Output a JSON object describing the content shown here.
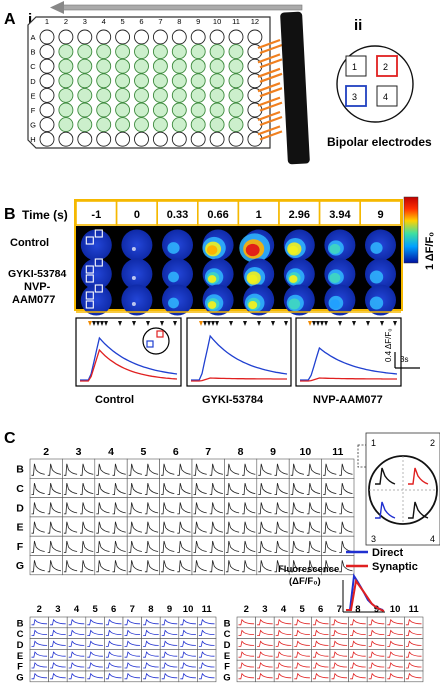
{
  "panel_a": {
    "label": "A",
    "sub_i": "i",
    "sub_ii": "ii",
    "plate_cols": [
      "1",
      "2",
      "3",
      "4",
      "5",
      "6",
      "7",
      "8",
      "9",
      "10",
      "11",
      "12"
    ],
    "plate_rows": [
      "A",
      "B",
      "C",
      "D",
      "E",
      "F",
      "G",
      "H"
    ],
    "electrode_numbers": [
      "1",
      "2",
      "3",
      "4"
    ],
    "electrode_caption": "Bipolar electrodes",
    "colors": {
      "well_fill": "#ccefcc",
      "well_stroke": "#3d8a3d",
      "tab": "#f08020",
      "electrode_red": "#e02020",
      "electrode_blue": "#2040c0"
    }
  },
  "panel_b": {
    "label": "B",
    "time_header": "Time (s)",
    "times": [
      "-1",
      "0",
      "0.33",
      "0.66",
      "1",
      "2.96",
      "3.94",
      "9"
    ],
    "conditions": [
      "Control",
      "GYKI-53784",
      "NVP-AAM077"
    ],
    "colorbar_label": "1 ΔF/F₀",
    "scale_y": "0.4 ΔF/F₀",
    "scale_x": "3s",
    "trace_titles": [
      "Control",
      "GYKI-53784",
      "NVP-AAM077"
    ],
    "colors": {
      "frame": "#f5b800",
      "blue_trace": "#2040d0",
      "red_trace": "#e02020",
      "marker_orange": "#f08a00"
    }
  },
  "panel_c": {
    "label": "C",
    "cols": [
      "2",
      "3",
      "4",
      "5",
      "6",
      "7",
      "8",
      "9",
      "10",
      "11"
    ],
    "rows": [
      "B",
      "C",
      "D",
      "E",
      "F",
      "G"
    ],
    "zoom_numbers": [
      "1",
      "2",
      "3",
      "4"
    ],
    "legend": [
      "Direct",
      "Synaptic"
    ],
    "ylabel_line1": "Fluorescence",
    "ylabel_line2": "(ΔF/F₀)",
    "colors": {
      "direct": "#2030d0",
      "synaptic": "#e02020"
    }
  }
}
